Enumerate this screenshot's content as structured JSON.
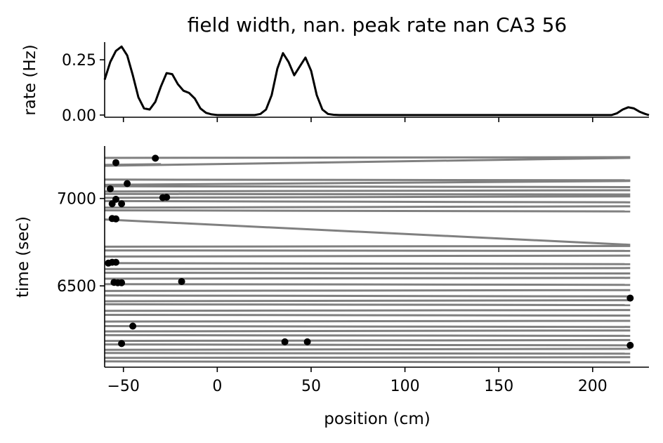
{
  "chart_data": {
    "title": "field width, nan. peak rate nan CA3 56",
    "shared_x": {
      "label": "position (cm)",
      "range": [
        -60,
        230
      ],
      "ticks": [
        -50,
        0,
        50,
        100,
        150,
        200
      ],
      "tick_labels": [
        "−50",
        "0",
        "50",
        "100",
        "150",
        "200"
      ]
    },
    "rate_panel": {
      "type": "line",
      "ylabel": "rate (Hz)",
      "ylim": [
        -0.01,
        0.33
      ],
      "yticks": [
        0.0,
        0.25
      ],
      "ytick_labels": [
        "0.00",
        "0.25"
      ],
      "color": "#000000",
      "x": [
        -60,
        -57,
        -54,
        -51,
        -48,
        -45,
        -42,
        -39,
        -36,
        -33,
        -30,
        -27,
        -24,
        -21,
        -18,
        -15,
        -12,
        -9,
        -6,
        -3,
        0,
        20,
        23,
        26,
        29,
        32,
        35,
        38,
        41,
        44,
        47,
        50,
        53,
        56,
        59,
        62,
        65,
        70,
        210,
        213,
        216,
        219,
        222,
        225,
        228,
        230
      ],
      "y": [
        0.16,
        0.24,
        0.29,
        0.31,
        0.27,
        0.18,
        0.08,
        0.03,
        0.025,
        0.06,
        0.13,
        0.19,
        0.185,
        0.14,
        0.11,
        0.1,
        0.075,
        0.03,
        0.01,
        0.003,
        0.0,
        0.0,
        0.005,
        0.025,
        0.09,
        0.21,
        0.28,
        0.24,
        0.18,
        0.22,
        0.26,
        0.2,
        0.09,
        0.025,
        0.005,
        0.001,
        0.0,
        0.0,
        0.0,
        0.008,
        0.025,
        0.035,
        0.03,
        0.015,
        0.005,
        0.0
      ]
    },
    "raster_panel": {
      "type": "line+scatter",
      "ylabel": "time (sec)",
      "ylim": [
        6035,
        7300
      ],
      "yticks": [
        6500,
        7000
      ],
      "ytick_labels": [
        "6500",
        "7000"
      ],
      "trajectory_color": "#808080",
      "spike_color": "#000000",
      "trajectory_runs": [
        [
          -60,
          7232,
          220,
          7236
        ],
        [
          220,
          7232,
          -60,
          7187
        ],
        [
          -60,
          7192,
          -30,
          7196
        ],
        [
          -60,
          7108,
          220,
          7104
        ],
        [
          220,
          7100,
          -60,
          7078
        ],
        [
          -60,
          7070,
          220,
          7065
        ],
        [
          220,
          7047,
          -60,
          7040
        ],
        [
          -60,
          7026,
          220,
          7023
        ],
        [
          220,
          7012,
          -60,
          7004
        ],
        [
          -60,
          6985,
          220,
          6978
        ],
        [
          220,
          6955,
          -60,
          6948
        ],
        [
          -60,
          6932,
          220,
          6926
        ],
        [
          -60,
          6880,
          220,
          6735
        ],
        [
          220,
          6728,
          -60,
          6724
        ],
        [
          -60,
          6703,
          220,
          6700
        ],
        [
          220,
          6673,
          -60,
          6668
        ],
        [
          -60,
          6630,
          220,
          6624
        ],
        [
          220,
          6602,
          -60,
          6596
        ],
        [
          -60,
          6575,
          220,
          6571
        ],
        [
          220,
          6546,
          -60,
          6541
        ],
        [
          -60,
          6510,
          220,
          6506
        ],
        [
          220,
          6476,
          -60,
          6471
        ],
        [
          -60,
          6445,
          220,
          6440
        ],
        [
          220,
          6418,
          -60,
          6412
        ],
        [
          -60,
          6395,
          220,
          6390
        ],
        [
          220,
          6362,
          -60,
          6357
        ],
        [
          -60,
          6334,
          220,
          6330
        ],
        [
          220,
          6300,
          -60,
          6296
        ],
        [
          -60,
          6270,
          220,
          6265
        ],
        [
          220,
          6245,
          -60,
          6240
        ],
        [
          -60,
          6218,
          220,
          6214
        ],
        [
          220,
          6190,
          -60,
          6185
        ],
        [
          -60,
          6165,
          220,
          6160
        ],
        [
          220,
          6140,
          -60,
          6134
        ],
        [
          -60,
          6116,
          220,
          6112
        ],
        [
          220,
          6092,
          -60,
          6088
        ],
        [
          -60,
          6068,
          220,
          6063
        ]
      ],
      "spikes": {
        "x": [
          -33,
          -54,
          -48,
          -57,
          -29,
          -27,
          -54,
          -56,
          -51,
          -56,
          -54,
          -58,
          -56,
          -54,
          -55,
          -53,
          -51,
          -19,
          220,
          -45,
          36,
          48,
          -51,
          220
        ],
        "y": [
          7230,
          7205,
          7085,
          7055,
          7005,
          7007,
          6995,
          6970,
          6970,
          6885,
          6883,
          6630,
          6635,
          6635,
          6520,
          6518,
          6518,
          6525,
          6430,
          6270,
          6180,
          6180,
          6170,
          6160
        ]
      }
    }
  }
}
